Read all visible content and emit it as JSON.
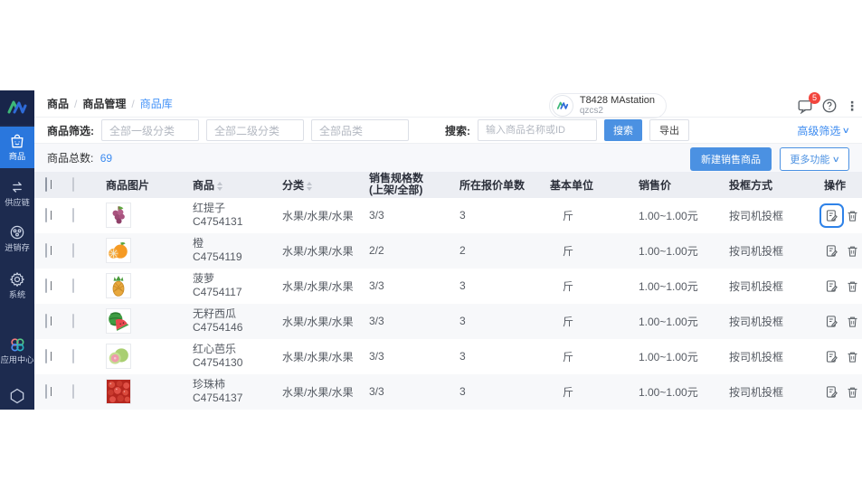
{
  "sidebar": {
    "items": [
      {
        "label": "商品",
        "icon": "bag-icon",
        "active": true
      },
      {
        "label": "供应链",
        "icon": "supply-icon",
        "active": false
      },
      {
        "label": "进销存",
        "icon": "inventory-icon",
        "active": false
      },
      {
        "label": "系统",
        "icon": "gear-icon",
        "active": false
      },
      {
        "label": "应用中心",
        "icon": "apps-icon",
        "active": false
      }
    ]
  },
  "header": {
    "breadcrumb": {
      "level1": "商品",
      "level2": "商品管理",
      "level3": "商品库"
    },
    "user": {
      "name": "T8428 MAstation",
      "account": "qzcs2"
    },
    "message_badge": "5"
  },
  "filters": {
    "label": "商品筛选:",
    "select1": "全部一级分类",
    "select2": "全部二级分类",
    "select3": "全部品类",
    "search_label": "搜索:",
    "search_placeholder": "输入商品名称或ID",
    "search_button": "搜索",
    "export_button": "导出",
    "advanced_filter": "高级筛选"
  },
  "toolbar": {
    "total_label": "商品总数:",
    "total_value": "69",
    "create_button": "新建销售商品",
    "more_button": "更多功能"
  },
  "table": {
    "headers": {
      "image": "商品图片",
      "name": "商品",
      "category": "分类",
      "specs": "销售规格数",
      "specs_sub": "(上架/全部)",
      "quotes": "所在报价单数",
      "unit": "基本单位",
      "price": "销售价",
      "basket": "投框方式",
      "actions": "操作"
    },
    "rows": [
      {
        "image": "grapes",
        "name": "红提子",
        "code": "C4754131",
        "category": "水果/水果/水果",
        "specs": "3/3",
        "quotes": "3",
        "unit": "斤",
        "price": "1.00~1.00元",
        "basket": "按司机投框"
      },
      {
        "image": "orange",
        "name": "橙",
        "code": "C4754119",
        "category": "水果/水果/水果",
        "specs": "2/2",
        "quotes": "2",
        "unit": "斤",
        "price": "1.00~1.00元",
        "basket": "按司机投框"
      },
      {
        "image": "pineapple",
        "name": "菠萝",
        "code": "C4754117",
        "category": "水果/水果/水果",
        "specs": "3/3",
        "quotes": "3",
        "unit": "斤",
        "price": "1.00~1.00元",
        "basket": "按司机投框"
      },
      {
        "image": "watermelon",
        "name": "无籽西瓜",
        "code": "C4754146",
        "category": "水果/水果/水果",
        "specs": "3/3",
        "quotes": "3",
        "unit": "斤",
        "price": "1.00~1.00元",
        "basket": "按司机投框"
      },
      {
        "image": "guava",
        "name": "红心芭乐",
        "code": "C4754130",
        "category": "水果/水果/水果",
        "specs": "3/3",
        "quotes": "3",
        "unit": "斤",
        "price": "1.00~1.00元",
        "basket": "按司机投框"
      },
      {
        "image": "tomatoes",
        "name": "珍珠柿",
        "code": "C4754137",
        "category": "水果/水果/水果",
        "specs": "3/3",
        "quotes": "3",
        "unit": "斤",
        "price": "1.00~1.00元",
        "basket": "按司机投框"
      }
    ]
  },
  "colors": {
    "sidebar_bg": "#1d2b4f",
    "active_item": "#2a77dd",
    "accent_blue": "#3c8bf0",
    "primary_button": "#4b91e2",
    "badge_red": "#f2453d",
    "table_header_bg": "#eceef3",
    "row_alt_bg": "#f7f8fa"
  }
}
